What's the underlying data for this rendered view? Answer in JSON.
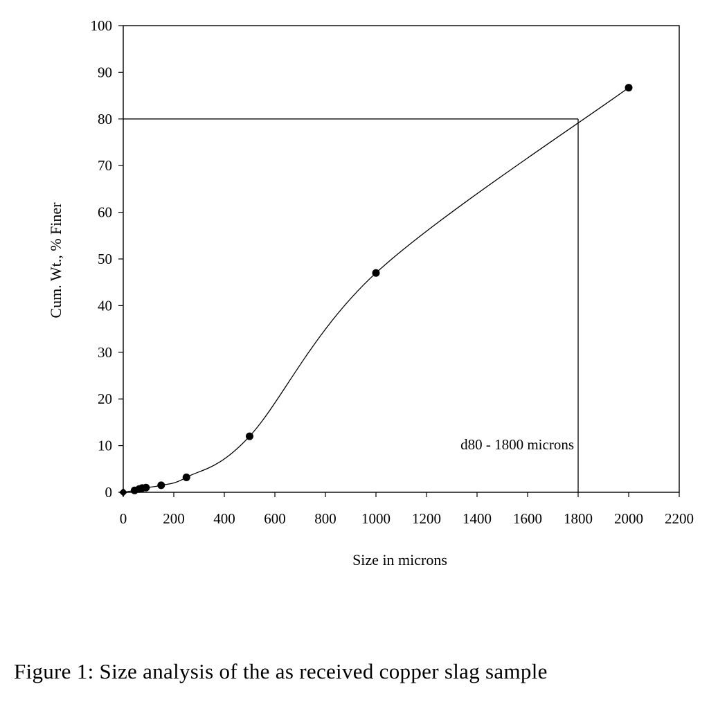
{
  "caption": "Figure 1: Size analysis of the as received copper slag sample",
  "chart_data": {
    "type": "line",
    "title": "",
    "xlabel": "Size in microns",
    "ylabel": "Cum. Wt., % Finer",
    "xlim": [
      0,
      2200
    ],
    "ylim": [
      0,
      100
    ],
    "xticks": [
      0,
      200,
      400,
      600,
      800,
      1000,
      1200,
      1400,
      1600,
      1800,
      2000,
      2200
    ],
    "yticks": [
      0,
      10,
      20,
      30,
      40,
      50,
      60,
      70,
      80,
      90,
      100
    ],
    "grid": false,
    "legend": "none",
    "markers": "filled-circle",
    "smooth": true,
    "series": [
      {
        "x": [
          0,
          45,
          63,
          75,
          90,
          150,
          250,
          500,
          1000,
          2000
        ],
        "y": [
          0,
          0.4,
          0.7,
          0.9,
          1.0,
          1.5,
          3.2,
          12,
          47,
          86.7
        ]
      }
    ],
    "reference": {
      "x": 1800,
      "y": 80
    },
    "annotation": "d80 - 1800 microns"
  }
}
